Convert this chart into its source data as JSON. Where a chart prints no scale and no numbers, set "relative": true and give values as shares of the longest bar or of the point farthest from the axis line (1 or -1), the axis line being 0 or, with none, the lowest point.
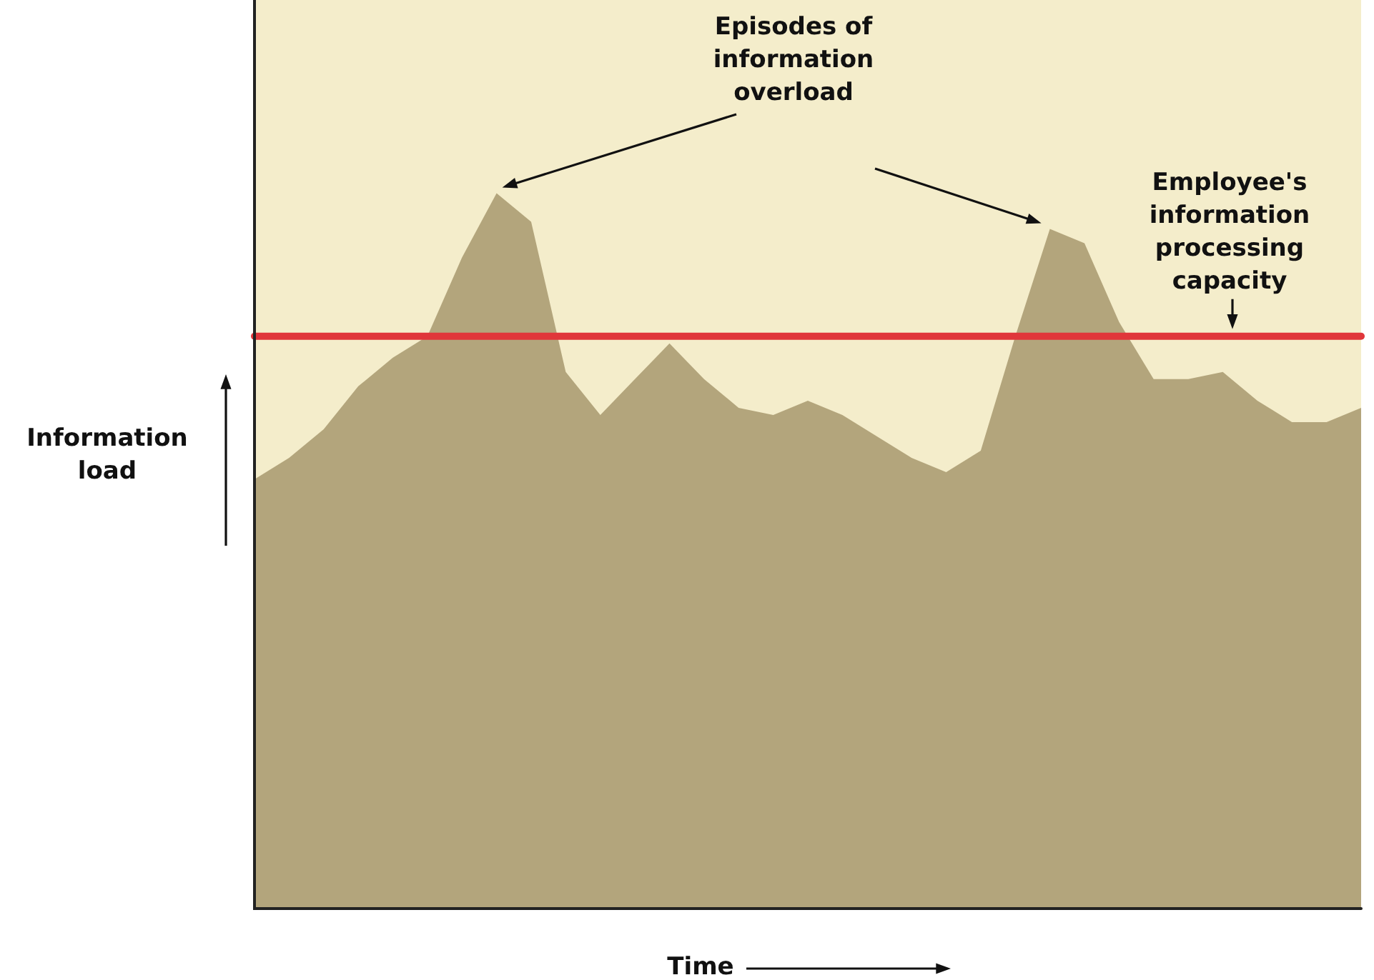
{
  "chart_data": {
    "type": "area",
    "relative": true,
    "xlabel": "Time",
    "ylabel": "Information load",
    "categories": [
      null,
      null,
      null,
      null,
      null,
      null,
      null,
      null,
      null,
      null,
      null,
      null,
      null,
      null,
      null,
      null,
      null,
      null,
      null,
      null,
      null,
      null,
      null,
      null,
      null,
      null,
      null,
      null,
      null,
      null,
      null,
      null,
      null
    ],
    "series": [
      {
        "color": "#b3a57c",
        "values": [
          0.6,
          0.63,
          0.67,
          0.73,
          0.77,
          0.8,
          0.91,
          1,
          0.96,
          0.75,
          0.69,
          0.74,
          0.79,
          0.74,
          0.7,
          0.69,
          0.71,
          0.69,
          0.66,
          0.63,
          0.61,
          0.64,
          0.8,
          0.95,
          0.93,
          0.82,
          0.74,
          0.74,
          0.75,
          0.71,
          0.68,
          0.68,
          0.7
        ]
      }
    ],
    "ref_lines": [
      {
        "axis": "y",
        "value": 0.8,
        "label": "Employee's information processing capacity",
        "color": "#e0363a"
      }
    ],
    "annotations": [
      "Episodes of information overload"
    ],
    "grid": false,
    "legend": false
  }
}
